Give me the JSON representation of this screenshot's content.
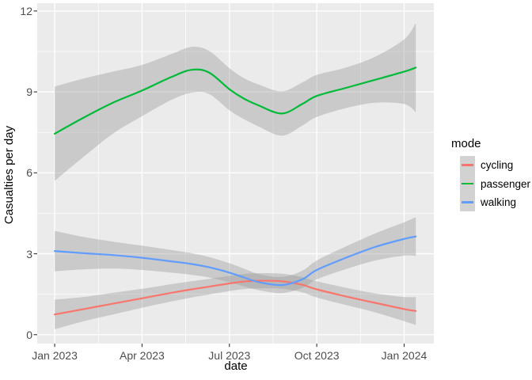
{
  "figure": {
    "background": "#FFFFFF",
    "panel_background": "#EBEBEB",
    "grid_color": "#FFFFFF",
    "tick_mark_color": "#333333",
    "tick_text_color": "#4D4D4D",
    "axis_title_color": "#000000"
  },
  "chart_data": {
    "type": "line",
    "title": "",
    "xlabel": "date",
    "ylabel": "Casualties per day",
    "x_tick_labels": [
      "Jan 2023",
      "Apr 2023",
      "Jul 2023",
      "Oct 2023",
      "Jan 2024"
    ],
    "x_tick_months": [
      0,
      3,
      6,
      9,
      12
    ],
    "x_minor_months": [
      1.5,
      4.5,
      7.5,
      10.5
    ],
    "y_tick_labels": [
      "0",
      "3",
      "6",
      "9",
      "12"
    ],
    "y_tick_values": [
      0,
      3,
      6,
      9,
      12
    ],
    "y_minor_values": [
      1.5,
      4.5,
      7.5,
      10.5
    ],
    "xlim_months": [
      -0.6,
      13.02
    ],
    "ylim": [
      -0.33,
      12.29
    ],
    "grid": true,
    "legend": {
      "title": "mode",
      "position": "right",
      "key_fill": "#D2D2D2",
      "items": [
        {
          "label": "cycling",
          "color": "#F8766D"
        },
        {
          "label": "passenger",
          "color": "#00BA38"
        },
        {
          "label": "walking",
          "color": "#619CFF"
        }
      ]
    },
    "ribbon": {
      "color": "#999999",
      "opacity": 0.4
    },
    "x_months": [
      0,
      1,
      2,
      3,
      4,
      4.7,
      5.3,
      6,
      6.5,
      7,
      7.8,
      8.5,
      9,
      10,
      11,
      12,
      12.4
    ],
    "series": [
      {
        "name": "cycling",
        "color": "#F8766D",
        "values": [
          0.75,
          0.95,
          1.15,
          1.35,
          1.55,
          1.68,
          1.78,
          1.9,
          1.97,
          2.0,
          1.98,
          1.85,
          1.68,
          1.42,
          1.18,
          0.95,
          0.88
        ],
        "upper": [
          1.3,
          1.4,
          1.55,
          1.7,
          1.87,
          1.98,
          2.07,
          2.18,
          2.25,
          2.28,
          2.26,
          2.13,
          1.98,
          1.74,
          1.53,
          1.4,
          1.4
        ],
        "lower": [
          0.2,
          0.5,
          0.75,
          1.0,
          1.23,
          1.38,
          1.49,
          1.62,
          1.69,
          1.72,
          1.7,
          1.57,
          1.38,
          1.1,
          0.83,
          0.5,
          0.36
        ]
      },
      {
        "name": "passenger",
        "color": "#00BA38",
        "values": [
          7.45,
          8.05,
          8.6,
          9.05,
          9.55,
          9.82,
          9.72,
          9.1,
          8.75,
          8.5,
          8.2,
          8.55,
          8.85,
          9.15,
          9.45,
          9.75,
          9.9
        ],
        "upper": [
          9.2,
          9.5,
          9.75,
          10.0,
          10.4,
          10.67,
          10.52,
          9.88,
          9.51,
          9.28,
          9.02,
          9.35,
          9.63,
          9.9,
          10.3,
          10.95,
          11.55
        ],
        "lower": [
          5.7,
          6.6,
          7.45,
          8.1,
          8.7,
          8.97,
          8.92,
          8.32,
          7.99,
          7.72,
          7.38,
          7.75,
          8.07,
          8.4,
          8.6,
          8.55,
          8.25
        ]
      },
      {
        "name": "walking",
        "color": "#619CFF",
        "values": [
          3.1,
          3.02,
          2.95,
          2.85,
          2.72,
          2.62,
          2.5,
          2.3,
          2.12,
          1.95,
          1.84,
          2.05,
          2.4,
          2.85,
          3.25,
          3.55,
          3.64
        ],
        "upper": [
          3.85,
          3.62,
          3.45,
          3.3,
          3.14,
          3.02,
          2.88,
          2.65,
          2.45,
          2.25,
          2.14,
          2.37,
          2.75,
          3.27,
          3.75,
          4.17,
          4.36
        ],
        "lower": [
          2.35,
          2.42,
          2.45,
          2.4,
          2.3,
          2.22,
          2.12,
          1.95,
          1.79,
          1.65,
          1.54,
          1.73,
          2.05,
          2.43,
          2.75,
          2.93,
          2.92
        ]
      }
    ]
  }
}
